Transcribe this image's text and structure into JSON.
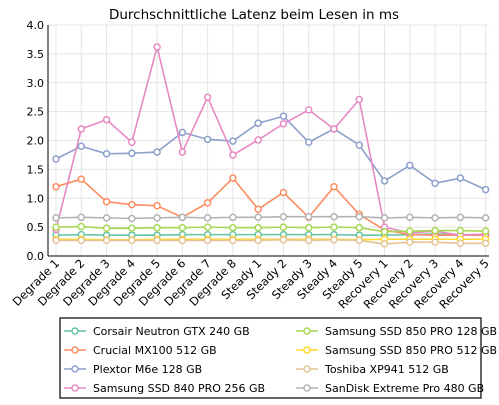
{
  "chart_data": {
    "type": "line",
    "title": "Durchschnittliche Latenz beim Lesen in ms",
    "xlabel": "",
    "ylabel": "",
    "ylim": [
      0,
      4.0
    ],
    "yticks": [
      "0.0",
      "0.5",
      "1.0",
      "1.5",
      "2.0",
      "2.5",
      "3.0",
      "3.5",
      "4.0"
    ],
    "grid": true,
    "legend_position": "bottom",
    "categories": [
      "Degrade 1",
      "Degrade 2",
      "Degrade 3",
      "Degrade 4",
      "Degrade 5",
      "Degrade 6",
      "Degrade 7",
      "Degrade 8",
      "Steady 1",
      "Steady 2",
      "Steady 3",
      "Steady 4",
      "Steady 5",
      "Recovery 1",
      "Recovery 2",
      "Recovery 3",
      "Recovery 4",
      "Recovery 5"
    ],
    "series": [
      {
        "name": "Corsair Neutron GTX 240 GB",
        "color": "#66c2a5",
        "values": [
          0.36,
          0.37,
          0.36,
          0.36,
          0.36,
          0.37,
          0.37,
          0.37,
          0.37,
          0.37,
          0.37,
          0.37,
          0.36,
          0.36,
          0.37,
          0.38,
          0.37,
          0.37
        ]
      },
      {
        "name": "Crucial MX100 512 GB",
        "color": "#fc8d62",
        "values": [
          1.2,
          1.33,
          0.94,
          0.89,
          0.87,
          0.67,
          0.92,
          1.35,
          0.81,
          1.1,
          0.67,
          1.2,
          0.72,
          0.45,
          0.37,
          0.36,
          0.36,
          0.36
        ]
      },
      {
        "name": "Plextor M6e 128 GB",
        "color": "#8da0cb",
        "values": [
          1.68,
          1.9,
          1.77,
          1.78,
          1.8,
          2.14,
          2.02,
          1.99,
          2.3,
          2.42,
          1.97,
          2.2,
          1.92,
          1.3,
          1.57,
          1.26,
          1.35,
          1.15
        ]
      },
      {
        "name": "Samsung SSD 840 PRO 256 GB",
        "color": "#e78ac3",
        "values": [
          0.46,
          2.2,
          2.36,
          1.97,
          3.62,
          1.8,
          2.75,
          1.75,
          2.01,
          2.29,
          2.53,
          2.2,
          2.71,
          0.5,
          0.4,
          0.43,
          0.36,
          0.38
        ]
      },
      {
        "name": "Samsung SSD 850 PRO 128 GB",
        "color": "#a6d854",
        "values": [
          0.5,
          0.51,
          0.48,
          0.48,
          0.49,
          0.49,
          0.5,
          0.49,
          0.49,
          0.5,
          0.49,
          0.5,
          0.49,
          0.42,
          0.43,
          0.44,
          0.44,
          0.43
        ]
      },
      {
        "name": "Samsung SSD 850 PRO 512 GB",
        "color": "#ffd92f",
        "values": [
          0.29,
          0.29,
          0.28,
          0.28,
          0.29,
          0.29,
          0.29,
          0.29,
          0.29,
          0.29,
          0.29,
          0.29,
          0.28,
          0.29,
          0.29,
          0.29,
          0.29,
          0.29
        ]
      },
      {
        "name": "Toshiba XP941 512 GB",
        "color": "#e5c494",
        "values": [
          0.27,
          0.27,
          0.27,
          0.27,
          0.27,
          0.27,
          0.27,
          0.27,
          0.27,
          0.28,
          0.27,
          0.28,
          0.27,
          0.21,
          0.24,
          0.24,
          0.22,
          0.22
        ]
      },
      {
        "name": "SanDisk Extreme Pro 480 GB",
        "color": "#b3b3b3",
        "values": [
          0.66,
          0.67,
          0.66,
          0.65,
          0.66,
          0.67,
          0.66,
          0.67,
          0.67,
          0.68,
          0.68,
          0.68,
          0.68,
          0.66,
          0.67,
          0.66,
          0.67,
          0.66
        ]
      }
    ]
  }
}
